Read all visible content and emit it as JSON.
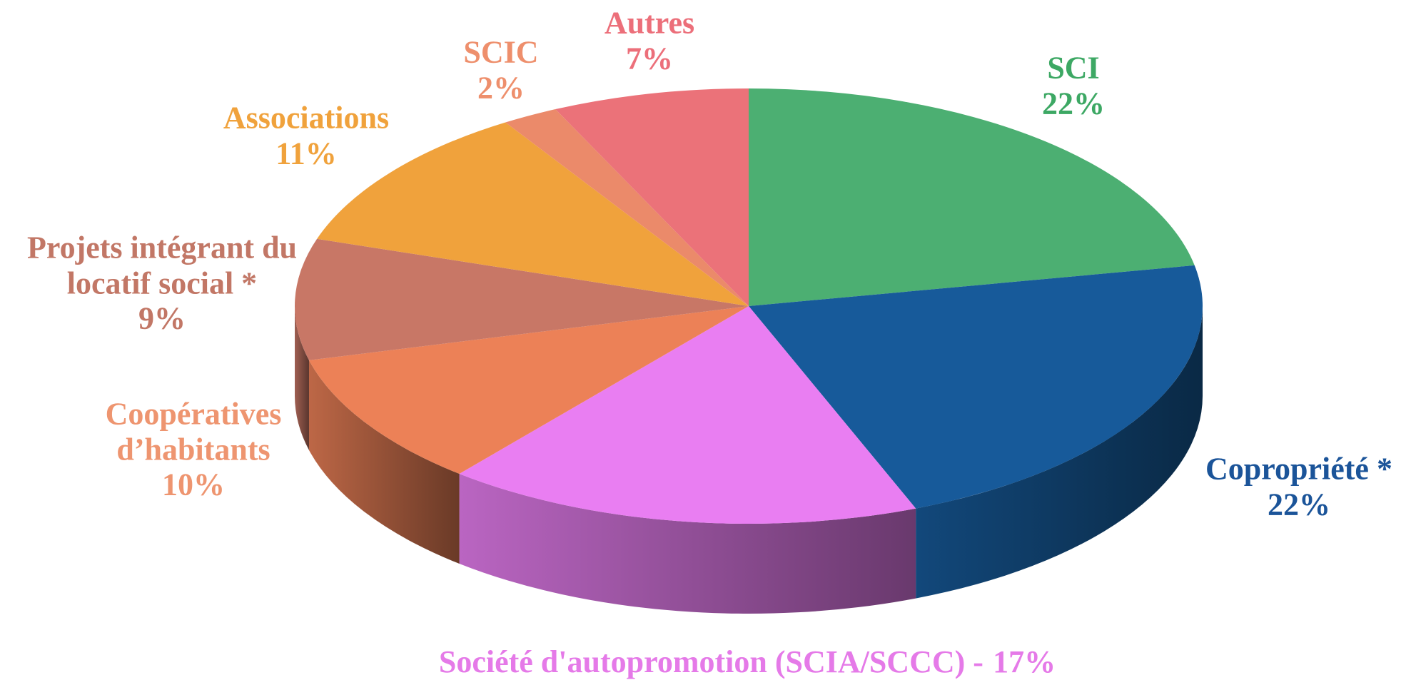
{
  "chart_data": {
    "type": "pie",
    "categories": [
      "SCI",
      "Copropriété *",
      "Société d'autopromotion (SCIA/SCCC) -",
      "Coopératives d’habitants",
      "Projets intégrant du locatif social *",
      "Associations",
      "SCIC",
      "Autres"
    ],
    "values": [
      22,
      22,
      17,
      10,
      9,
      11,
      2,
      7
    ],
    "value_labels": [
      "22%",
      "22%",
      "17%",
      "10%",
      "9%",
      "11%",
      "2%",
      "7%"
    ],
    "colors": [
      "#4caf72",
      "#175a9a",
      "#e97ef2",
      "#ec8157",
      "#c87766",
      "#f0a23c",
      "#eb8a6a",
      "#eb7279"
    ],
    "label_colors": [
      "#3da864",
      "#1b5499",
      "#e57ae8",
      "#ee9570",
      "#c27766",
      "#f0a23c",
      "#ee8f6c",
      "#ec6f7a"
    ]
  }
}
